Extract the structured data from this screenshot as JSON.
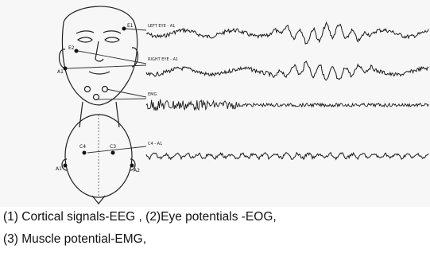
{
  "figure": {
    "traces": [
      {
        "label": "LEFT EYE - A1",
        "kind": "eog"
      },
      {
        "label": "RIGHT EYE - A1",
        "kind": "eog"
      },
      {
        "label": "EMG",
        "kind": "emg"
      },
      {
        "label": "C4 - A1",
        "kind": "eeg"
      }
    ],
    "electrodes": {
      "face": [
        "E1",
        "E2",
        "A1"
      ],
      "head_top": [
        "C4",
        "C3",
        "A1",
        "A2"
      ]
    }
  },
  "caption": {
    "line1": "(1) Cortical signals-EEG ,   (2)Eye potentials -EOG,",
    "line2": "(3) Muscle potential-EMG,"
  }
}
